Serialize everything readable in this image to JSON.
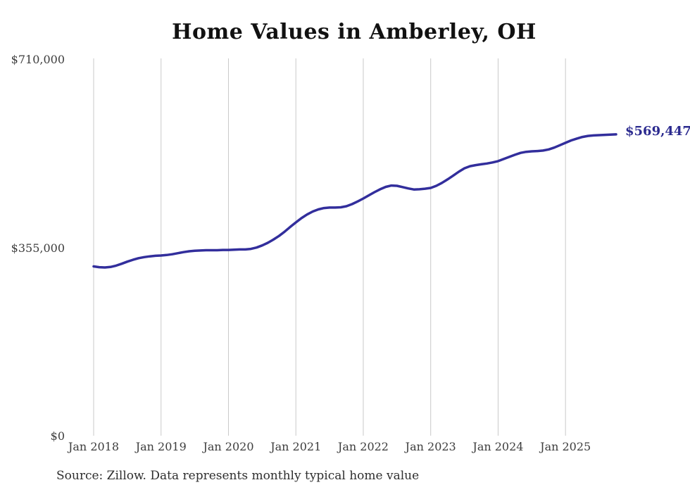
{
  "title": "Home Values in Amberley, OH",
  "end_label": "$569,447",
  "source": "Source: Zillow. Data represents monthly typical home value",
  "colors": {
    "line": "#322e9c",
    "end_label": "#2b2a8f",
    "grid": "#c9c9c9",
    "title": "#111111",
    "axis_text": "#3d3d3d",
    "background": "#ffffff"
  },
  "y_axis": {
    "ticks": [
      {
        "label": "$710,000",
        "value": 710000
      },
      {
        "label": "$355,000",
        "value": 355000
      },
      {
        "label": "$0",
        "value": 0
      }
    ]
  },
  "x_axis": {
    "ticks": [
      {
        "label": "Jan 2018",
        "month_index": 0
      },
      {
        "label": "Jan 2019",
        "month_index": 12
      },
      {
        "label": "Jan 2020",
        "month_index": 24
      },
      {
        "label": "Jan 2021",
        "month_index": 36
      },
      {
        "label": "Jan 2022",
        "month_index": 48
      },
      {
        "label": "Jan 2023",
        "month_index": 60
      },
      {
        "label": "Jan 2024",
        "month_index": 72
      },
      {
        "label": "Jan 2025",
        "month_index": 84
      }
    ]
  },
  "chart_data": {
    "type": "line",
    "title": "Home Values in Amberley, OH",
    "xlabel": "",
    "ylabel": "",
    "ylim": [
      0,
      710000
    ],
    "grid": "vertical-only",
    "legend": "none",
    "series_name": "Typical home value ($)",
    "last_point_label": "$569,447",
    "x": [
      "2018-01",
      "2018-02",
      "2018-03",
      "2018-04",
      "2018-05",
      "2018-06",
      "2018-07",
      "2018-08",
      "2018-09",
      "2018-10",
      "2018-11",
      "2018-12",
      "2019-01",
      "2019-02",
      "2019-03",
      "2019-04",
      "2019-05",
      "2019-06",
      "2019-07",
      "2019-08",
      "2019-09",
      "2019-10",
      "2019-11",
      "2019-12",
      "2020-01",
      "2020-02",
      "2020-03",
      "2020-04",
      "2020-05",
      "2020-06",
      "2020-07",
      "2020-08",
      "2020-09",
      "2020-10",
      "2020-11",
      "2020-12",
      "2021-01",
      "2021-02",
      "2021-03",
      "2021-04",
      "2021-05",
      "2021-06",
      "2021-07",
      "2021-08",
      "2021-09",
      "2021-10",
      "2021-11",
      "2021-12",
      "2022-01",
      "2022-02",
      "2022-03",
      "2022-04",
      "2022-05",
      "2022-06",
      "2022-07",
      "2022-08",
      "2022-09",
      "2022-10",
      "2022-11",
      "2022-12",
      "2023-01",
      "2023-02",
      "2023-03",
      "2023-04",
      "2023-05",
      "2023-06",
      "2023-07",
      "2023-08",
      "2023-09",
      "2023-10",
      "2023-11",
      "2023-12",
      "2024-01",
      "2024-02",
      "2024-03",
      "2024-04",
      "2024-05",
      "2024-06",
      "2024-07",
      "2024-08",
      "2024-09",
      "2024-10",
      "2024-11",
      "2024-12",
      "2025-01",
      "2025-02",
      "2025-03",
      "2025-04",
      "2025-05",
      "2025-06",
      "2025-07",
      "2025-08",
      "2025-09",
      "2025-10"
    ],
    "values": [
      320500,
      319000,
      318500,
      319500,
      322000,
      325500,
      329500,
      333000,
      336000,
      338000,
      339500,
      340500,
      341000,
      342000,
      343500,
      345500,
      347500,
      349000,
      350000,
      350500,
      351000,
      351000,
      351000,
      351500,
      351500,
      352000,
      352500,
      352500,
      353500,
      356000,
      360000,
      365000,
      371000,
      378000,
      386000,
      395000,
      403500,
      411500,
      418500,
      424000,
      428000,
      430500,
      431500,
      431500,
      432000,
      434000,
      438000,
      443000,
      448500,
      454500,
      460500,
      466000,
      470500,
      473000,
      472500,
      470000,
      467500,
      465500,
      466000,
      467000,
      468500,
      472500,
      478000,
      484500,
      491500,
      499000,
      505500,
      509500,
      511500,
      513000,
      514500,
      516500,
      519000,
      523000,
      527000,
      531000,
      534500,
      536500,
      537500,
      538000,
      539000,
      541000,
      544500,
      549000,
      553500,
      558000,
      561500,
      564500,
      566500,
      567500,
      568000,
      568500,
      569000,
      569447
    ]
  }
}
